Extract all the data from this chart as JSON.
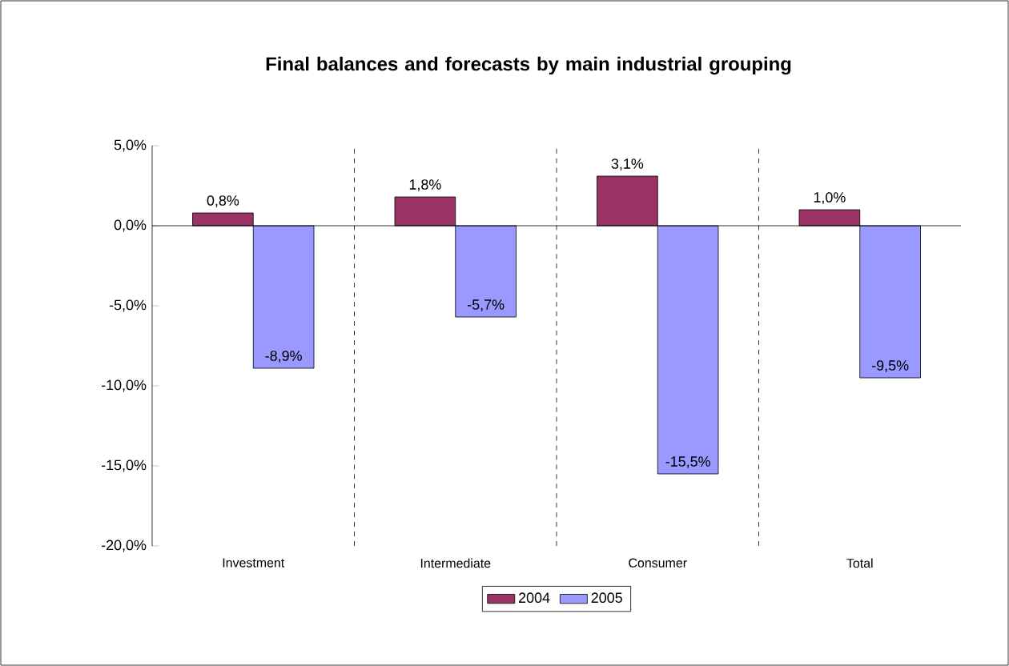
{
  "chart_data": {
    "type": "bar",
    "title": "Final balances and forecasts by main industrial grouping",
    "categories": [
      "Investment",
      "Intermediate",
      "Consumer",
      "Total"
    ],
    "series": [
      {
        "name": "2004",
        "color": "#993366",
        "values": [
          0.8,
          1.8,
          3.1,
          1.0
        ],
        "value_labels": [
          "0,8%",
          "1,8%",
          "3,1%",
          "1,0%"
        ]
      },
      {
        "name": "2005",
        "color": "#9999ff",
        "values": [
          -8.9,
          -5.7,
          -15.5,
          -9.5
        ],
        "value_labels": [
          "-8,9%",
          "-5,7%",
          "-15,5%",
          "-9,5%"
        ]
      }
    ],
    "ylim": [
      -20,
      5
    ],
    "yticks": [
      {
        "value": -20,
        "label": "-20,0%"
      },
      {
        "value": -15,
        "label": "-15,0%"
      },
      {
        "value": -10,
        "label": "-10,0%"
      },
      {
        "value": -5,
        "label": "-5,0%"
      },
      {
        "value": 0,
        "label": "0,0%"
      },
      {
        "value": 5,
        "label": "5,0%"
      }
    ],
    "grid": "x",
    "legend": "bottom"
  }
}
